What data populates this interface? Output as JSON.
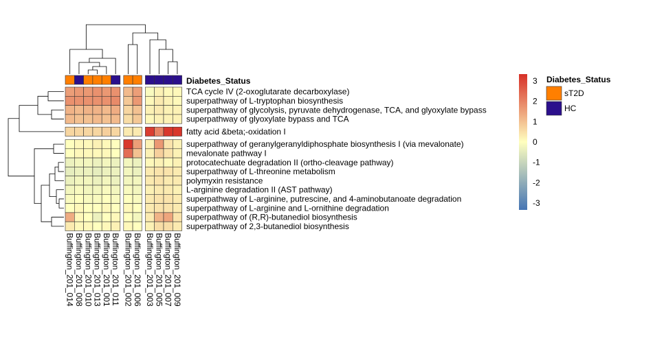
{
  "chart_data": {
    "type": "heatmap",
    "columns": [
      "Buffington_201_014",
      "Buffington_201_008",
      "Buffington_201_010",
      "Buffington_201_013",
      "Buffington_201_001",
      "Buffington_201_011",
      "Buffington_201_002",
      "Buffington_201_006",
      "Buffington_201_003",
      "Buffington_201_005",
      "Buffington_201_007",
      "Buffington_201_009"
    ],
    "annotation": {
      "name": "Diabetes_Status",
      "values": [
        "sT2D",
        "HC",
        "sT2D",
        "sT2D",
        "sT2D",
        "HC",
        "sT2D",
        "sT2D",
        "HC",
        "HC",
        "HC",
        "HC"
      ],
      "legend": [
        {
          "label": "sT2D",
          "color": "#FF7F00"
        },
        {
          "label": "HC",
          "color": "#2B0F8C"
        }
      ]
    },
    "rows": [
      "TCA cycle IV (2-oxoglutarate decarboxylase)",
      "superpathway of L-tryptophan biosynthesis",
      "superpathway of glycolysis, pyruvate dehydrogenase, TCA, and glyoxylate bypass",
      "superpathway of glyoxylate bypass and TCA",
      "fatty acid &beta;-oxidation I",
      "superpathway of geranylgeranyldiphosphate biosynthesis I (via mevalonate)",
      "mevalonate pathway I",
      "protocatechuate degradation II (ortho-cleavage pathway)",
      "superpathway of L-threonine metabolism",
      "polymyxin resistance",
      "L-arginine degradation II (AST pathway)",
      "superpathway of L-arginine, putrescine, and 4-aminobutanoate degradation",
      "superpathway of L-arginine and L-ornithine degradation",
      "superpathway of (R,R)-butanediol biosynthesis",
      "superpathway of 2,3-butanediol biosynthesis"
    ],
    "values": [
      [
        1.4,
        1.5,
        1.5,
        1.6,
        1.5,
        1.6,
        1.0,
        1.4,
        -0.1,
        0.2,
        0.1,
        0.1
      ],
      [
        1.6,
        1.6,
        1.6,
        1.6,
        1.6,
        1.7,
        0.8,
        1.5,
        0.1,
        0.3,
        0.2,
        0.1
      ],
      [
        1.1,
        1.0,
        1.1,
        1.1,
        1.0,
        1.2,
        0.6,
        0.9,
        0.2,
        0.3,
        0.2,
        0.2
      ],
      [
        1.0,
        0.9,
        0.9,
        1.0,
        0.9,
        1.0,
        0.5,
        0.8,
        0.1,
        0.2,
        0.2,
        0.2
      ],
      [
        0.6,
        0.6,
        0.6,
        0.6,
        0.7,
        0.6,
        0.3,
        0.3,
        2.8,
        1.8,
        2.9,
        2.9
      ],
      [
        0.0,
        0.1,
        0.1,
        0.2,
        0.1,
        0.0,
        2.9,
        1.4,
        0.2,
        1.5,
        0.4,
        0.2
      ],
      [
        0.0,
        0.1,
        0.1,
        0.1,
        0.1,
        0.0,
        2.1,
        0.9,
        0.2,
        0.7,
        0.4,
        0.2
      ],
      [
        -0.3,
        -0.2,
        -0.2,
        -0.3,
        -0.2,
        -0.3,
        -0.2,
        -0.3,
        0.1,
        0.2,
        0.1,
        0.2
      ],
      [
        -0.4,
        -0.3,
        -0.3,
        -0.4,
        -0.3,
        -0.3,
        -0.2,
        -0.3,
        0.3,
        0.4,
        0.4,
        0.3
      ],
      [
        -0.3,
        -0.2,
        -0.2,
        -0.3,
        -0.2,
        -0.3,
        -0.2,
        -0.2,
        0.3,
        0.4,
        0.3,
        0.3
      ],
      [
        -0.2,
        -0.1,
        -0.2,
        -0.2,
        -0.1,
        -0.2,
        -0.1,
        -0.2,
        0.2,
        0.3,
        0.3,
        0.2
      ],
      [
        -0.1,
        0.0,
        -0.1,
        -0.1,
        0.0,
        -0.1,
        0.0,
        -0.1,
        0.3,
        0.4,
        0.4,
        0.3
      ],
      [
        0.0,
        0.1,
        0.0,
        0.0,
        0.1,
        0.0,
        0.1,
        0.0,
        0.3,
        0.4,
        0.4,
        0.3
      ],
      [
        1.2,
        0.1,
        0.0,
        -0.3,
        0.0,
        0.1,
        0.0,
        -0.2,
        0.3,
        1.1,
        1.3,
        0.4
      ],
      [
        0.3,
        0.1,
        0.1,
        0.0,
        0.1,
        0.2,
        0.1,
        0.0,
        0.2,
        0.5,
        0.5,
        0.3
      ]
    ],
    "column_gaps_after": [
      5,
      7
    ],
    "row_gaps_after": [
      3,
      4
    ],
    "color_scale": {
      "min": -3,
      "max": 3,
      "ticks": [
        "3",
        "2",
        "1",
        "0",
        "-1",
        "-2",
        "-3"
      ],
      "colors": [
        "#4575B4",
        "#FFFFBF",
        "#D73027"
      ]
    }
  }
}
